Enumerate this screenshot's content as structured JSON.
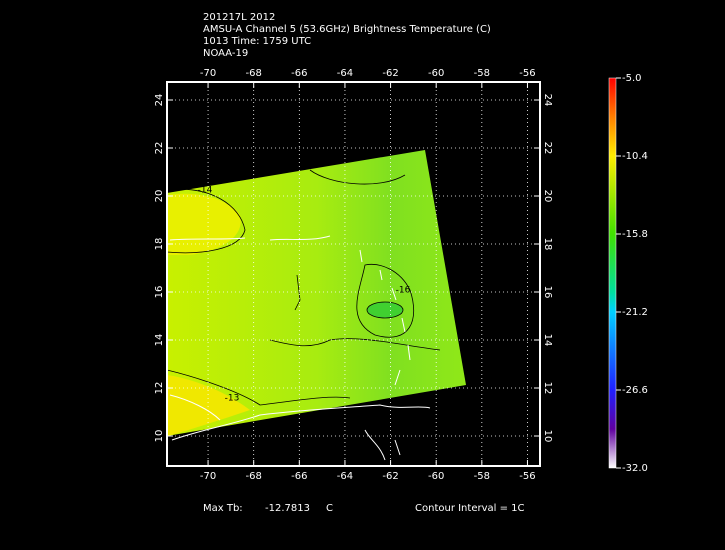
{
  "header": {
    "lines": [
      "201217L 2012",
      "AMSU-A Channel 5 (53.6GHz) Brightness Temperature (C)",
      "1013 Time: 1759 UTC",
      "NOAA-19"
    ]
  },
  "map": {
    "xlim": [
      -71.8,
      -55.45
    ],
    "ylim": [
      8.75,
      24.75
    ],
    "xticks": [
      -70,
      -68,
      -66,
      -64,
      -62,
      -60,
      -58,
      -56
    ],
    "yticks": [
      10,
      12,
      14,
      16,
      18,
      20,
      22,
      24
    ],
    "contour_labels": [
      "-14",
      "-16",
      "-13"
    ]
  },
  "colorbar": {
    "lim": [
      -32,
      -5
    ],
    "ticks": [
      {
        "value": -5,
        "label": "-5.0"
      },
      -10.4,
      -15.8,
      -21.2,
      -26.6,
      {
        "value": -32,
        "label": "-32.0"
      }
    ]
  },
  "footer": {
    "max_tb_label": "Max Tb:",
    "max_tb_value": "-12.7813",
    "max_tb_unit": "C",
    "contour_interval": "Contour Interval = 1C"
  }
}
